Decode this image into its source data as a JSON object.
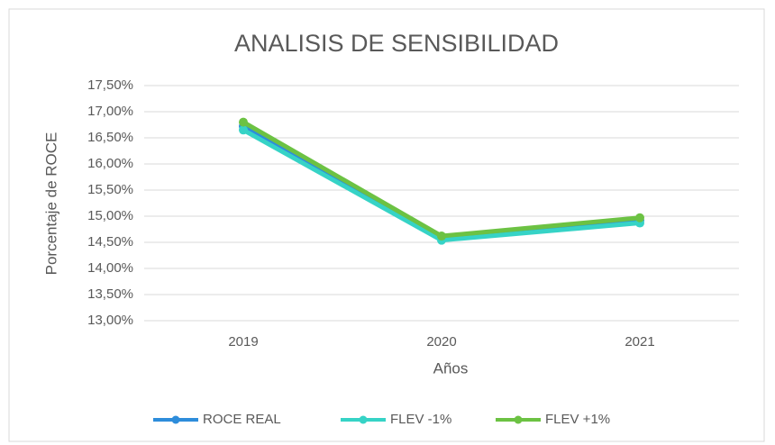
{
  "chart_data": {
    "type": "line",
    "title": "ANALISIS DE SENSIBILIDAD",
    "x_label": "Años",
    "y_label": "Porcentaje de ROCE",
    "categories": [
      "2019",
      "2020",
      "2021"
    ],
    "series": [
      {
        "name": "ROCE REAL",
        "color": "#2e8ddb",
        "values": [
          16.72,
          14.58,
          14.92
        ]
      },
      {
        "name": "FLEV -1%",
        "color": "#36d3c6",
        "values": [
          16.65,
          14.54,
          14.87
        ]
      },
      {
        "name": "FLEV +1%",
        "color": "#6cc243",
        "values": [
          16.8,
          14.62,
          14.97
        ]
      }
    ],
    "ylim": [
      13,
      17.5
    ],
    "yticks": [
      {
        "value": 13,
        "label": "13,00%"
      },
      {
        "value": 13.5,
        "label": "13,50%"
      },
      {
        "value": 14,
        "label": "14,00%"
      },
      {
        "value": 14.5,
        "label": "14,50%"
      },
      {
        "value": 15,
        "label": "15,00%"
      },
      {
        "value": 15.5,
        "label": "15,50%"
      },
      {
        "value": 16,
        "label": "16,00%"
      },
      {
        "value": 16.5,
        "label": "16,50%"
      },
      {
        "value": 17,
        "label": "17,00%"
      },
      {
        "value": 17.5,
        "label": "17,50%"
      }
    ],
    "grid": true,
    "legend": "bottom"
  }
}
